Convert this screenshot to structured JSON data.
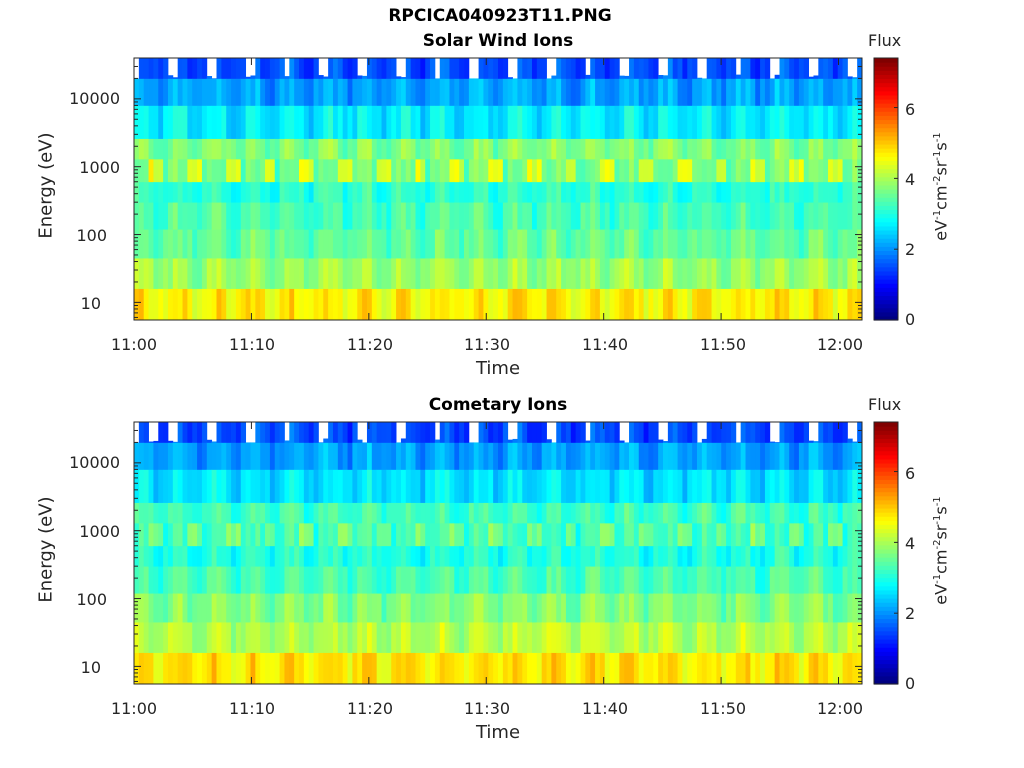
{
  "figure_title": "RPCICA040923T11.PNG",
  "colorbar": {
    "title": "Flux",
    "label_parts": [
      "eV",
      "-1",
      "cm",
      "-2",
      "sr",
      "-1",
      "s",
      "-1"
    ],
    "ticks": [
      "0",
      "2",
      "4",
      "6"
    ],
    "range": [
      0,
      7.4
    ],
    "colormap": "jet"
  },
  "chart_data": [
    {
      "type": "heatmap",
      "title": "Solar Wind Ions",
      "xlabel": "Time",
      "ylabel": "Energy (eV)",
      "x_ticks": [
        "11:00",
        "11:10",
        "11:20",
        "11:30",
        "11:40",
        "11:50",
        "12:00"
      ],
      "xlim": [
        "11:00",
        "12:02"
      ],
      "y_ticks": [
        "10",
        "100",
        "1000",
        "10000"
      ],
      "ylim": [
        5.5,
        40000
      ],
      "y_scale": "log",
      "scan_period_min": 3.2,
      "bands": [
        {
          "energy_range": [
            5.5,
            16
          ],
          "flux": 4.7
        },
        {
          "energy_range": [
            16,
            45
          ],
          "flux": 3.9
        },
        {
          "energy_range": [
            45,
            120
          ],
          "flux": 3.5
        },
        {
          "energy_range": [
            120,
            300
          ],
          "flux": 3.3
        },
        {
          "energy_range": [
            300,
            600
          ],
          "flux": 3.1
        },
        {
          "energy_range": [
            600,
            1300
          ],
          "flux": 4.6
        },
        {
          "energy_range": [
            1300,
            2600
          ],
          "flux": 3.7
        },
        {
          "energy_range": [
            2600,
            8000
          ],
          "flux": 2.7
        },
        {
          "energy_range": [
            8000,
            20000
          ],
          "flux": 2.1
        },
        {
          "energy_range": [
            20000,
            40000
          ],
          "flux": 1.5
        }
      ]
    },
    {
      "type": "heatmap",
      "title": "Cometary Ions",
      "xlabel": "Time",
      "ylabel": "Energy (eV)",
      "x_ticks": [
        "11:00",
        "11:10",
        "11:20",
        "11:30",
        "11:40",
        "11:50",
        "12:00"
      ],
      "xlim": [
        "11:00",
        "12:02"
      ],
      "y_ticks": [
        "10",
        "100",
        "1000",
        "10000"
      ],
      "ylim": [
        5.5,
        40000
      ],
      "y_scale": "log",
      "scan_period_min": 3.2,
      "bands": [
        {
          "energy_range": [
            5.5,
            16
          ],
          "flux": 4.8
        },
        {
          "energy_range": [
            16,
            45
          ],
          "flux": 4.1
        },
        {
          "energy_range": [
            45,
            120
          ],
          "flux": 3.7
        },
        {
          "energy_range": [
            120,
            300
          ],
          "flux": 3.3
        },
        {
          "energy_range": [
            300,
            600
          ],
          "flux": 3.0
        },
        {
          "energy_range": [
            600,
            1300
          ],
          "flux": 3.9
        },
        {
          "energy_range": [
            1300,
            2600
          ],
          "flux": 3.2
        },
        {
          "energy_range": [
            2600,
            8000
          ],
          "flux": 2.6
        },
        {
          "energy_range": [
            8000,
            20000
          ],
          "flux": 2.1
        },
        {
          "energy_range": [
            20000,
            40000
          ],
          "flux": 1.5
        }
      ]
    }
  ]
}
